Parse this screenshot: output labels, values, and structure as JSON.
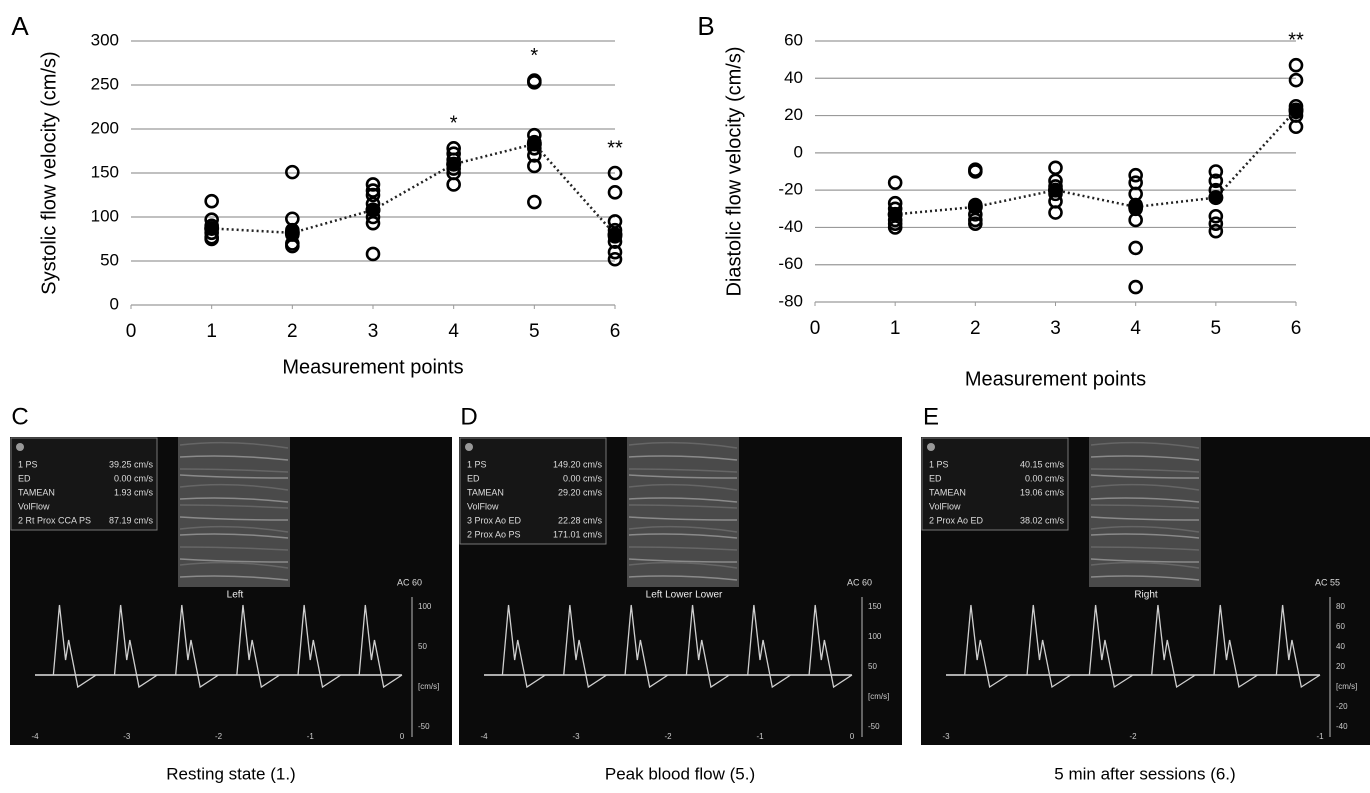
{
  "chart_data": [
    {
      "type": "scatter",
      "panel": "A",
      "ylabel": "Systolic flow velocity (cm/s)",
      "xlabel": "Measurement points",
      "xlim": [
        0,
        6
      ],
      "xticks": [
        0,
        1,
        2,
        3,
        4,
        5,
        6
      ],
      "ylim": [
        0,
        300
      ],
      "yticks": [
        0,
        50,
        100,
        150,
        200,
        250,
        300
      ],
      "grid": true,
      "points": {
        "x": [
          1,
          1,
          1,
          1,
          1,
          1,
          2,
          2,
          2,
          2,
          2,
          2,
          3,
          3,
          3,
          3,
          3,
          3,
          3,
          3,
          4,
          4,
          4,
          4,
          4,
          4,
          4,
          5,
          5,
          5,
          5,
          5,
          5,
          5,
          5,
          6,
          6,
          6,
          6,
          6,
          6,
          6,
          6
        ],
        "y": [
          118,
          97,
          90,
          82,
          77,
          75,
          151,
          98,
          85,
          80,
          70,
          67,
          137,
          130,
          125,
          115,
          108,
          100,
          93,
          58,
          178,
          172,
          165,
          160,
          155,
          150,
          137,
          255,
          253,
          193,
          185,
          178,
          170,
          158,
          117,
          150,
          128,
          95,
          85,
          78,
          72,
          60,
          52
        ]
      },
      "mean": {
        "x": [
          1,
          2,
          3,
          4,
          5,
          6
        ],
        "values": [
          87,
          82,
          108,
          160,
          183,
          80
        ]
      },
      "annotations": [
        {
          "x": 4,
          "text": "*"
        },
        {
          "x": 5,
          "text": "*"
        },
        {
          "x": 6,
          "text": "**"
        }
      ]
    },
    {
      "type": "scatter",
      "panel": "B",
      "ylabel": "Diastolic flow velocity (cm/s)",
      "xlabel": "Measurement points",
      "xlim": [
        0,
        6
      ],
      "xticks": [
        0,
        1,
        2,
        3,
        4,
        5,
        6
      ],
      "ylim": [
        -80,
        60
      ],
      "yticks": [
        -80,
        -60,
        -40,
        -20,
        0,
        20,
        40,
        60
      ],
      "grid": true,
      "points": {
        "x": [
          1,
          1,
          1,
          1,
          1,
          1,
          1,
          2,
          2,
          2,
          2,
          2,
          2,
          3,
          3,
          3,
          3,
          3,
          3,
          3,
          4,
          4,
          4,
          4,
          4,
          4,
          4,
          4,
          5,
          5,
          5,
          5,
          5,
          5,
          5,
          6,
          6,
          6,
          6,
          6,
          6
        ],
        "y": [
          -16,
          -27,
          -30,
          -33,
          -36,
          -38,
          -40,
          -10,
          -9,
          -28,
          -33,
          -36,
          -38,
          -8,
          -15,
          -18,
          -22,
          -26,
          -32,
          -20,
          -12,
          -16,
          -22,
          -28,
          -30,
          -36,
          -51,
          -72,
          -10,
          -15,
          -20,
          -24,
          -34,
          -38,
          -42,
          47,
          39,
          25,
          22,
          20,
          14
        ]
      },
      "mean": {
        "x": [
          1,
          2,
          3,
          4,
          5,
          6
        ],
        "values": [
          -33,
          -29,
          -20,
          -29,
          -24,
          23
        ]
      },
      "annotations": [
        {
          "x": 6,
          "text": "**"
        }
      ]
    }
  ],
  "panels": [
    {
      "letter": "C",
      "caption": "Resting state (1.)",
      "wave_label": "Left",
      "ac": "AC 60",
      "rows": [
        [
          "1 PS",
          "39.25 cm/s"
        ],
        [
          "ED",
          "0.00 cm/s"
        ],
        [
          "TAMEAN",
          "1.93 cm/s"
        ],
        [
          "VolFlow",
          ""
        ],
        [
          "2 Rt Prox CCA PS",
          "87.19 cm/s"
        ]
      ],
      "scale": [
        "100",
        "50",
        "[cm/s]",
        "-50"
      ],
      "time": [
        "-4",
        "-3",
        "-2",
        "-1",
        "0"
      ]
    },
    {
      "letter": "D",
      "caption": "Peak blood flow (5.)",
      "wave_label": "Left Lower Lower",
      "ac": "AC 60",
      "rows": [
        [
          "1 PS",
          "149.20 cm/s"
        ],
        [
          "ED",
          "0.00 cm/s"
        ],
        [
          "TAMEAN",
          "29.20 cm/s"
        ],
        [
          "VolFlow",
          ""
        ],
        [
          "3 Prox Ao ED",
          "22.28 cm/s"
        ],
        [
          "2 Prox Ao PS",
          "171.01 cm/s"
        ]
      ],
      "scale": [
        "150",
        "100",
        "50",
        "[cm/s]",
        "-50"
      ],
      "time": [
        "-4",
        "-3",
        "-2",
        "-1",
        "0"
      ]
    },
    {
      "letter": "E",
      "caption": "5 min after sessions (6.)",
      "wave_label": "Right",
      "ac": "AC 55",
      "rows": [
        [
          "1 PS",
          "40.15 cm/s"
        ],
        [
          "ED",
          "0.00 cm/s"
        ],
        [
          "TAMEAN",
          "19.06 cm/s"
        ],
        [
          "VolFlow",
          ""
        ],
        [
          "2 Prox Ao ED",
          "38.02 cm/s"
        ]
      ],
      "scale": [
        "80",
        "60",
        "40",
        "20",
        "[cm/s]",
        "-20",
        "-40"
      ],
      "time": [
        "-3",
        "-2",
        "-1"
      ]
    }
  ]
}
